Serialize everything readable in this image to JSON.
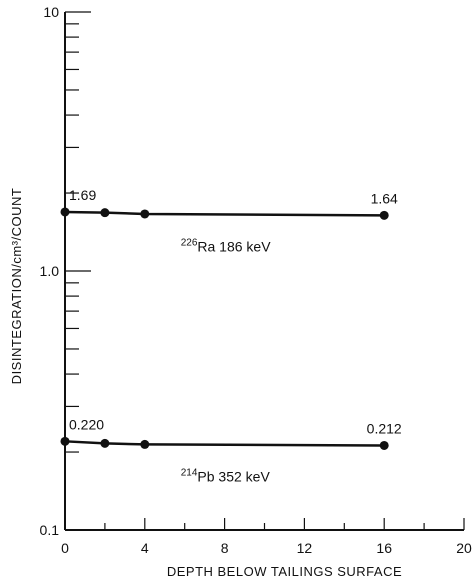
{
  "chart_data": {
    "type": "line",
    "title": "",
    "xlabel": "DEPTH BELOW TAILINGS SURFACE",
    "ylabel": "DISINTEGRATION/cm³/COUNT",
    "xlim": [
      0,
      20
    ],
    "ylim": [
      0.1,
      10
    ],
    "y_scale": "log",
    "x_ticks": [
      0,
      4,
      8,
      12,
      16,
      20
    ],
    "x_tick_labels": [
      "0",
      "4",
      "8",
      "12",
      "16",
      "20"
    ],
    "y_major_ticks": [
      0.1,
      1.0,
      10
    ],
    "y_major_labels": [
      "0.1",
      "1.0",
      "10"
    ],
    "grid": false,
    "series": [
      {
        "label_mass": "226",
        "label_text": "Ra  186 keV",
        "x": [
          0,
          2,
          4,
          16
        ],
        "values": [
          1.69,
          1.68,
          1.66,
          1.64
        ],
        "point_labels": [
          {
            "x": 0,
            "y": 1.69,
            "text": "1.69"
          },
          {
            "x": 16,
            "y": 1.64,
            "text": "1.64"
          }
        ]
      },
      {
        "label_mass": "214",
        "label_text": "Pb  352 keV",
        "x": [
          0,
          2,
          4,
          16
        ],
        "values": [
          0.22,
          0.216,
          0.214,
          0.212
        ],
        "point_labels": [
          {
            "x": 0,
            "y": 0.22,
            "text": "0.220"
          },
          {
            "x": 16,
            "y": 0.212,
            "text": "0.212"
          }
        ]
      }
    ]
  }
}
